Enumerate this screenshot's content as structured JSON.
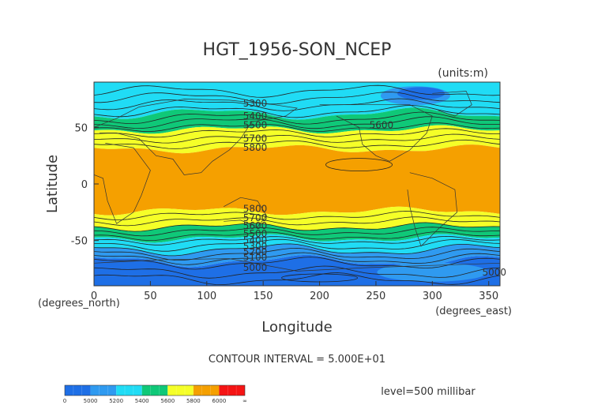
{
  "chart_data": {
    "type": "heatmap",
    "title": "HGT_1956-SON_NCEP",
    "units": "(units:m)",
    "xlabel": "Longitude",
    "ylabel": "Latitude",
    "x_unit_label": "(degrees_east)",
    "y_unit_label": "(degrees_north)",
    "xlim": [
      0,
      360
    ],
    "ylim": [
      -90,
      90
    ],
    "x_ticks": [
      0,
      50,
      100,
      150,
      200,
      250,
      300,
      350
    ],
    "y_ticks": [
      -50,
      0,
      50
    ],
    "contour_interval_text": "CONTOUR INTERVAL = 5.000E+01",
    "level_text": "level=500 millibar",
    "contour_labels": [
      {
        "text": "5300",
        "lon": 128,
        "lat": 71
      },
      {
        "text": "5400",
        "lon": 128,
        "lat": 60
      },
      {
        "text": "5500",
        "lon": 128,
        "lat": 52
      },
      {
        "text": "5600",
        "lon": 240,
        "lat": 52
      },
      {
        "text": "5700",
        "lon": 128,
        "lat": 40
      },
      {
        "text": "5800",
        "lon": 128,
        "lat": 32
      },
      {
        "text": "5800",
        "lon": 128,
        "lat": -22
      },
      {
        "text": "5700",
        "lon": 128,
        "lat": -30
      },
      {
        "text": "5600",
        "lon": 128,
        "lat": -37
      },
      {
        "text": "5500",
        "lon": 128,
        "lat": -44
      },
      {
        "text": "5400",
        "lon": 128,
        "lat": -50
      },
      {
        "text": "5300",
        "lon": 128,
        "lat": -55
      },
      {
        "text": "5200",
        "lon": 128,
        "lat": -60
      },
      {
        "text": "5100",
        "lon": 128,
        "lat": -65
      },
      {
        "text": "5000",
        "lon": 128,
        "lat": -74
      },
      {
        "text": "5000",
        "lon": 340,
        "lat": -78
      }
    ],
    "colorbar": {
      "labels": [
        "0",
        "5000",
        "5200",
        "5400",
        "5600",
        "5800",
        "6000",
        "∞"
      ],
      "colors": [
        "#1e6fe6",
        "#2f9af0",
        "#20dcf5",
        "#0fc878",
        "#f5ff28",
        "#f5a000",
        "#f51414"
      ]
    },
    "bands": [
      {
        "lat_top": 90,
        "lat_bottom": 62,
        "color": "#20dcf5",
        "value": "<5400"
      },
      {
        "lat_top": 62,
        "lat_bottom": 48,
        "color": "#0fc878",
        "value": "5400-5600"
      },
      {
        "lat_top": 48,
        "lat_bottom": 31,
        "color": "#f5ff28",
        "value": "5600-5800"
      },
      {
        "lat_top": 31,
        "lat_bottom": -24,
        "color": "#f5a000",
        "value": ">5800"
      },
      {
        "lat_top": -24,
        "lat_bottom": -38,
        "color": "#f5ff28",
        "value": "5600-5800"
      },
      {
        "lat_top": -38,
        "lat_bottom": -48,
        "color": "#0fc878",
        "value": "5400-5600"
      },
      {
        "lat_top": -48,
        "lat_bottom": -58,
        "color": "#20dcf5",
        "value": "5200-5400"
      },
      {
        "lat_top": -58,
        "lat_bottom": -68,
        "color": "#2f9af0",
        "value": "5000-5200"
      },
      {
        "lat_top": -68,
        "lat_bottom": -90,
        "color": "#1e6fe6",
        "value": "<5000"
      }
    ],
    "contour_lines_lat": [
      82,
      76,
      70,
      64,
      58,
      54,
      50,
      45,
      40,
      35,
      -28,
      -33,
      -38,
      -42,
      -46,
      -50,
      -54,
      -58,
      -62,
      -66,
      -70,
      -78,
      -84
    ],
    "top_band_colors": [
      "#2f9af0",
      "#1e6fe6"
    ]
  }
}
